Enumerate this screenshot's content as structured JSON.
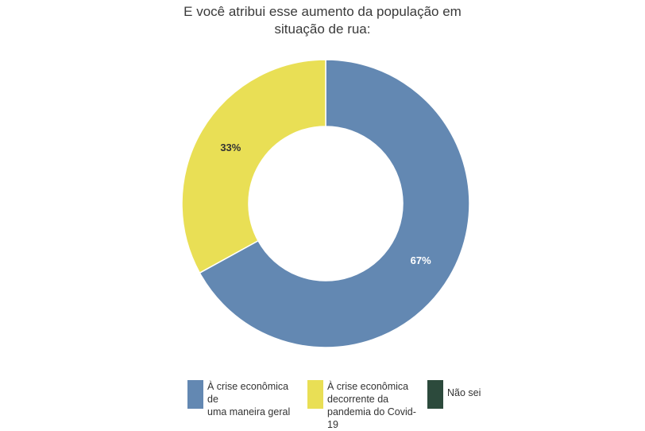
{
  "chart_data": {
    "type": "pie",
    "donut": true,
    "title_lines": [
      "E você atribui esse aumento da população em",
      "situação de rua:"
    ],
    "categories": [
      "À crise econômica de\numa maneira geral",
      "À crise econômica\ndecorrente da\npandemia do Covid-19",
      "Não sei"
    ],
    "values": [
      67,
      33,
      0
    ],
    "value_labels": [
      "67%",
      "33%",
      ""
    ],
    "colors": [
      "#6388b2",
      "#e9df55",
      "#2c4a3c"
    ],
    "label_colors": [
      "#ffffff",
      "#333333",
      "#ffffff"
    ],
    "legend_position": "bottom"
  }
}
